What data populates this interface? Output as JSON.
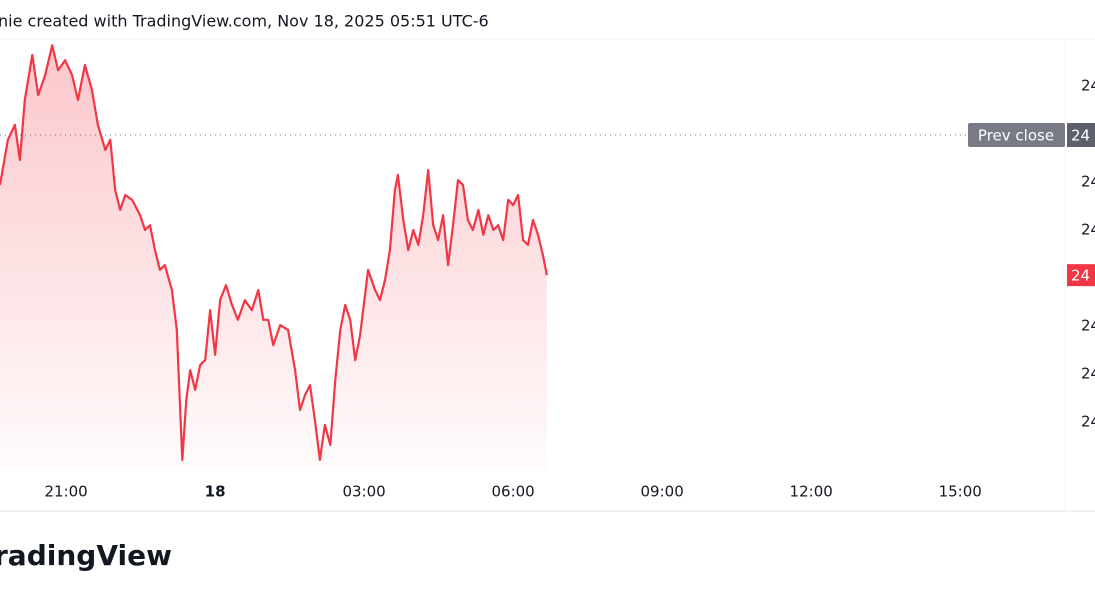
{
  "header": "nie created with TradingView.com, Nov 18, 2025 05:51 UTC-6",
  "footer": "radingView",
  "chart_data": {
    "type": "area",
    "color": "#f23645",
    "x": [
      -4.33,
      -4.17,
      -4.03,
      -3.93,
      -3.83,
      -3.68,
      -3.56,
      -3.42,
      -3.28,
      -3.16,
      -3.02,
      -2.88,
      -2.76,
      -2.62,
      -2.48,
      -2.36,
      -2.21,
      -2.11,
      -2.01,
      -1.91,
      -1.81,
      -1.67,
      -1.51,
      -1.41,
      -1.31,
      -1.21,
      -1.11,
      -1.01,
      -0.87,
      -0.77,
      -0.66,
      -0.58,
      -0.5,
      -0.4,
      -0.3,
      -0.2,
      -0.1,
      0,
      0.1,
      0.22,
      0.34,
      0.46,
      0.6,
      0.74,
      0.87,
      0.97,
      1.07,
      1.17,
      1.31,
      1.47,
      1.61,
      1.71,
      1.81,
      1.91,
      2.01,
      2.11,
      2.21,
      2.32,
      2.42,
      2.52,
      2.62,
      2.72,
      2.82,
      2.92,
      3.08,
      3.22,
      3.32,
      3.42,
      3.52,
      3.62,
      3.68,
      3.79,
      3.89,
      3.99,
      4.09,
      4.19,
      4.29,
      4.39,
      4.49,
      4.59,
      4.69,
      4.79,
      4.89,
      4.99,
      5.09,
      5.19,
      5.3,
      5.4,
      5.5,
      5.6,
      5.7,
      5.8,
      5.9,
      6,
      6.1,
      6.2,
      6.3,
      6.4,
      6.5,
      6.6,
      6.68
    ],
    "values": [
      4.94,
      5.88,
      6.19,
      5.46,
      6.71,
      7.65,
      6.81,
      7.23,
      7.85,
      7.33,
      7.54,
      7.23,
      6.71,
      7.44,
      6.92,
      6.19,
      5.67,
      5.88,
      4.83,
      4.42,
      4.73,
      4.63,
      4.31,
      4,
      4.1,
      3.58,
      3.17,
      3.27,
      2.75,
      1.92,
      -0.79,
      0.46,
      1.08,
      0.67,
      1.19,
      1.29,
      2.33,
      1.4,
      2.54,
      2.85,
      2.44,
      2.13,
      2.54,
      2.33,
      2.75,
      2.13,
      2.13,
      1.6,
      2.02,
      1.92,
      1.08,
      0.25,
      0.56,
      0.77,
      0.04,
      -0.79,
      -0.06,
      -0.48,
      0.88,
      1.92,
      2.44,
      2.13,
      1.29,
      1.81,
      3.17,
      2.75,
      2.54,
      2.96,
      3.58,
      4.83,
      5.15,
      4.21,
      3.58,
      4,
      3.69,
      4.31,
      5.25,
      4.1,
      3.79,
      4.31,
      3.27,
      4.1,
      5.04,
      4.94,
      4.21,
      4,
      4.42,
      3.9,
      4.31,
      4,
      4.1,
      3.79,
      4.63,
      4.52,
      4.73,
      3.79,
      3.69,
      4.21,
      3.9,
      3.48,
      3.06
    ],
    "xlim": [
      -4.33,
      17.11
    ],
    "xticks": [
      {
        "value": -3,
        "label": "21:00"
      },
      0,
      {
        "value": 3,
        "label": "03:00"
      },
      {
        "value": 6,
        "label": "06:00"
      },
      {
        "value": 9,
        "label": "09:00"
      },
      {
        "value": 12,
        "label": "12:00"
      },
      {
        "value": 15,
        "label": "15:00"
      }
    ],
    "xtick_labels_bold": [
      false,
      true,
      false,
      false,
      false,
      false,
      false
    ],
    "day_label": "18",
    "ylim": [
      -1,
      7.96
    ],
    "yticks": [
      {
        "value": 7,
        "label": "24"
      },
      {
        "value": 5,
        "label": "24"
      },
      {
        "value": 4,
        "label": "24"
      },
      {
        "value": 3,
        "label": "24"
      },
      {
        "value": 2,
        "label": "24"
      },
      {
        "value": 1,
        "label": "24"
      },
      {
        "value": 0,
        "label": "24"
      }
    ],
    "prev_close": {
      "value": 5.98,
      "name": "Prev close",
      "label": "24"
    },
    "last_price_label": "24"
  }
}
